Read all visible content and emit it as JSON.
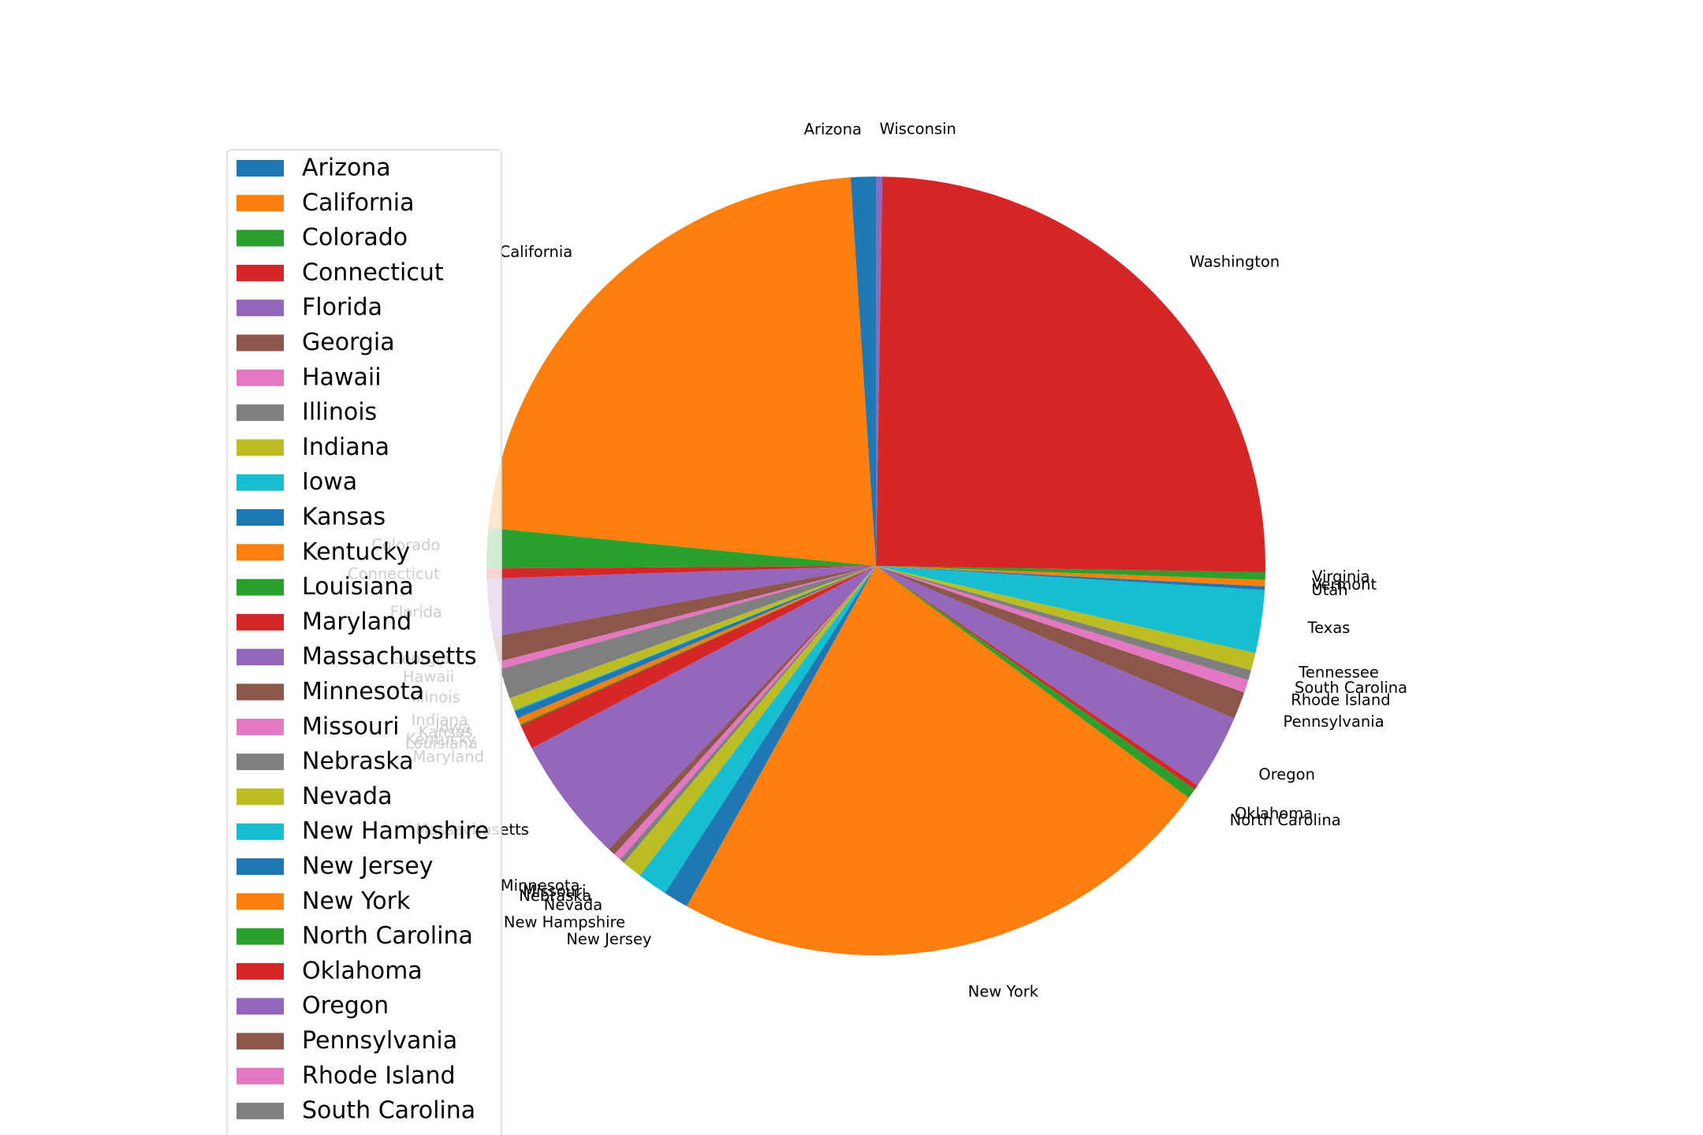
{
  "chart_data": {
    "type": "pie",
    "title": "",
    "start_angle_deg": 90,
    "direction": "counterclockwise",
    "legend_placement": "left",
    "slices": [
      {
        "label": "Arizona",
        "value": 1.0,
        "color": "#1f77b4"
      },
      {
        "label": "California",
        "value": 21.5,
        "color": "#ff7f0e"
      },
      {
        "label": "Colorado",
        "value": 1.6,
        "color": "#2ca02c"
      },
      {
        "label": "Connecticut",
        "value": 0.4,
        "color": "#d62728"
      },
      {
        "label": "Florida",
        "value": 2.3,
        "color": "#9467bd"
      },
      {
        "label": "Georgia",
        "value": 1.0,
        "color": "#8c564b"
      },
      {
        "label": "Hawaii",
        "value": 0.3,
        "color": "#e377c2"
      },
      {
        "label": "Illinois",
        "value": 1.2,
        "color": "#7f7f7f"
      },
      {
        "label": "Indiana",
        "value": 0.5,
        "color": "#bcbd22"
      },
      {
        "label": "Iowa",
        "value": 0.05,
        "color": "#17becf"
      },
      {
        "label": "Kansas",
        "value": 0.3,
        "color": "#1f77b4"
      },
      {
        "label": "Kentucky",
        "value": 0.25,
        "color": "#ff7f0e"
      },
      {
        "label": "Louisiana",
        "value": 0.05,
        "color": "#2ca02c"
      },
      {
        "label": "Maryland",
        "value": 1.0,
        "color": "#d62728"
      },
      {
        "label": "Massachusetts",
        "value": 5.0,
        "color": "#9467bd"
      },
      {
        "label": "Minnesota",
        "value": 0.3,
        "color": "#8c564b"
      },
      {
        "label": "Missouri",
        "value": 0.3,
        "color": "#e377c2"
      },
      {
        "label": "Nebraska",
        "value": 0.2,
        "color": "#7f7f7f"
      },
      {
        "label": "Nevada",
        "value": 0.8,
        "color": "#bcbd22"
      },
      {
        "label": "New Hampshire",
        "value": 1.2,
        "color": "#17becf"
      },
      {
        "label": "New Jersey",
        "value": 1.0,
        "color": "#1f77b4"
      },
      {
        "label": "New York",
        "value": 22.0,
        "color": "#ff7f0e"
      },
      {
        "label": "North Carolina",
        "value": 0.4,
        "color": "#2ca02c"
      },
      {
        "label": "Oklahoma",
        "value": 0.2,
        "color": "#d62728"
      },
      {
        "label": "Oregon",
        "value": 3.0,
        "color": "#9467bd"
      },
      {
        "label": "Pennsylvania",
        "value": 1.1,
        "color": "#8c564b"
      },
      {
        "label": "Rhode Island",
        "value": 0.5,
        "color": "#e377c2"
      },
      {
        "label": "South Carolina",
        "value": 0.4,
        "color": "#7f7f7f"
      },
      {
        "label": "Tennessee",
        "value": 0.7,
        "color": "#bcbd22"
      },
      {
        "label": "Texas",
        "value": 2.5,
        "color": "#17becf"
      },
      {
        "label": "Utah",
        "value": 0.15,
        "color": "#1f77b4"
      },
      {
        "label": "Vermont",
        "value": 0.25,
        "color": "#ff7f0e"
      },
      {
        "label": "Virginia",
        "value": 0.3,
        "color": "#2ca02c"
      },
      {
        "label": "Washington",
        "value": 24.0,
        "color": "#d62728"
      },
      {
        "label": "Wisconsin",
        "value": 0.25,
        "color": "#9467bd"
      }
    ],
    "legend_entries": [
      "Arizona",
      "California",
      "Colorado",
      "Connecticut",
      "Florida",
      "Georgia",
      "Hawaii",
      "Illinois",
      "Indiana",
      "Iowa",
      "Kansas",
      "Kentucky",
      "Louisiana",
      "Maryland",
      "Massachusetts",
      "Minnesota",
      "Missouri",
      "Nebraska",
      "Nevada",
      "New Hampshire",
      "New Jersey",
      "New York",
      "North Carolina",
      "Oklahoma",
      "Oregon",
      "Pennsylvania",
      "Rhode Island",
      "South Carolina",
      "Tennessee"
    ]
  }
}
